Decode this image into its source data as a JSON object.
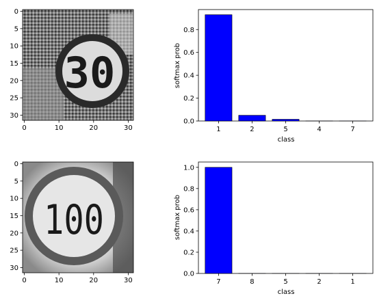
{
  "chart_data": [
    {
      "type": "image",
      "image_description": "",
      "x_ticks": [
        "0",
        "10",
        "20",
        "30"
      ],
      "y_ticks": [
        "0",
        "5",
        "10",
        "15",
        "20",
        "25",
        "30"
      ],
      "xlim": [
        -0.5,
        31.5
      ],
      "ylim": [
        31.5,
        -0.5
      ],
      "colormap": "grayscale"
    },
    {
      "type": "bar",
      "categories": [
        "1",
        "2",
        "5",
        "4",
        "7"
      ],
      "values": [
        0.93,
        0.05,
        0.015,
        0.001,
        0.0005
      ],
      "xlabel": "class",
      "ylabel": "softmax prob",
      "y_ticks": [
        "0.0",
        "0.2",
        "0.4",
        "0.6",
        "0.8"
      ],
      "ylim": [
        0,
        0.975
      ],
      "bar_color": "#0000ff"
    },
    {
      "type": "image",
      "image_description": "",
      "x_ticks": [
        "0",
        "10",
        "20",
        "30"
      ],
      "y_ticks": [
        "0",
        "5",
        "10",
        "15",
        "20",
        "25",
        "30"
      ],
      "xlim": [
        -0.5,
        31.5
      ],
      "ylim": [
        31.5,
        -0.5
      ],
      "colormap": "grayscale"
    },
    {
      "type": "bar",
      "categories": [
        "7",
        "8",
        "5",
        "2",
        "1"
      ],
      "values": [
        1.0,
        0.0003,
        0.0002,
        0.0001,
        0.0001
      ],
      "xlabel": "class",
      "ylabel": "softmax prob",
      "y_ticks": [
        "0.0",
        "0.2",
        "0.4",
        "0.6",
        "0.8",
        "1.0"
      ],
      "ylim": [
        0,
        1.05
      ],
      "bar_color": "#0000ff"
    }
  ],
  "sign_texts": [
    "30",
    "100"
  ]
}
